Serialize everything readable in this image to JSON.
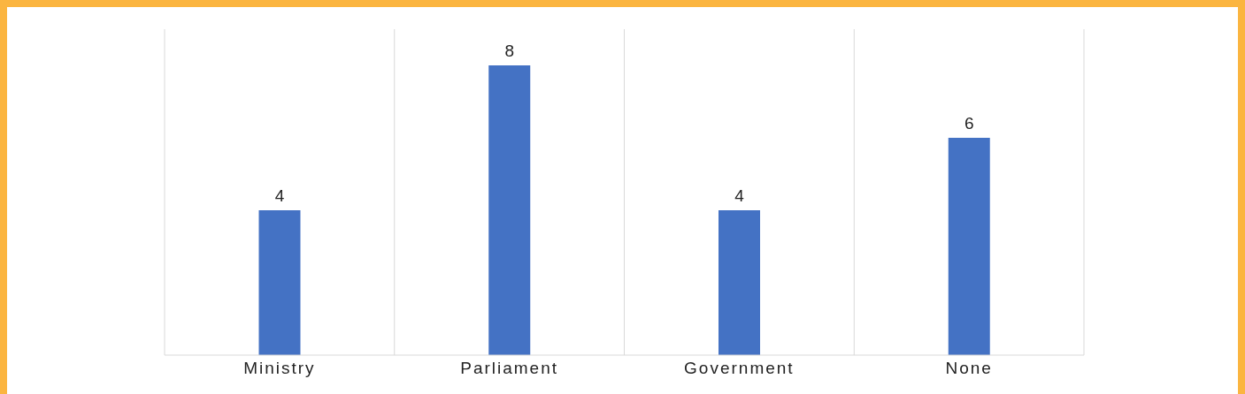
{
  "chart_data": {
    "type": "bar",
    "categories": [
      "Ministry",
      "Parliament",
      "Government",
      "None"
    ],
    "values": [
      4,
      8,
      4,
      6
    ],
    "color": "#4472c4",
    "ylim": [
      0,
      9
    ],
    "data_labels": true,
    "grid": "x",
    "tick_labels": "x"
  }
}
